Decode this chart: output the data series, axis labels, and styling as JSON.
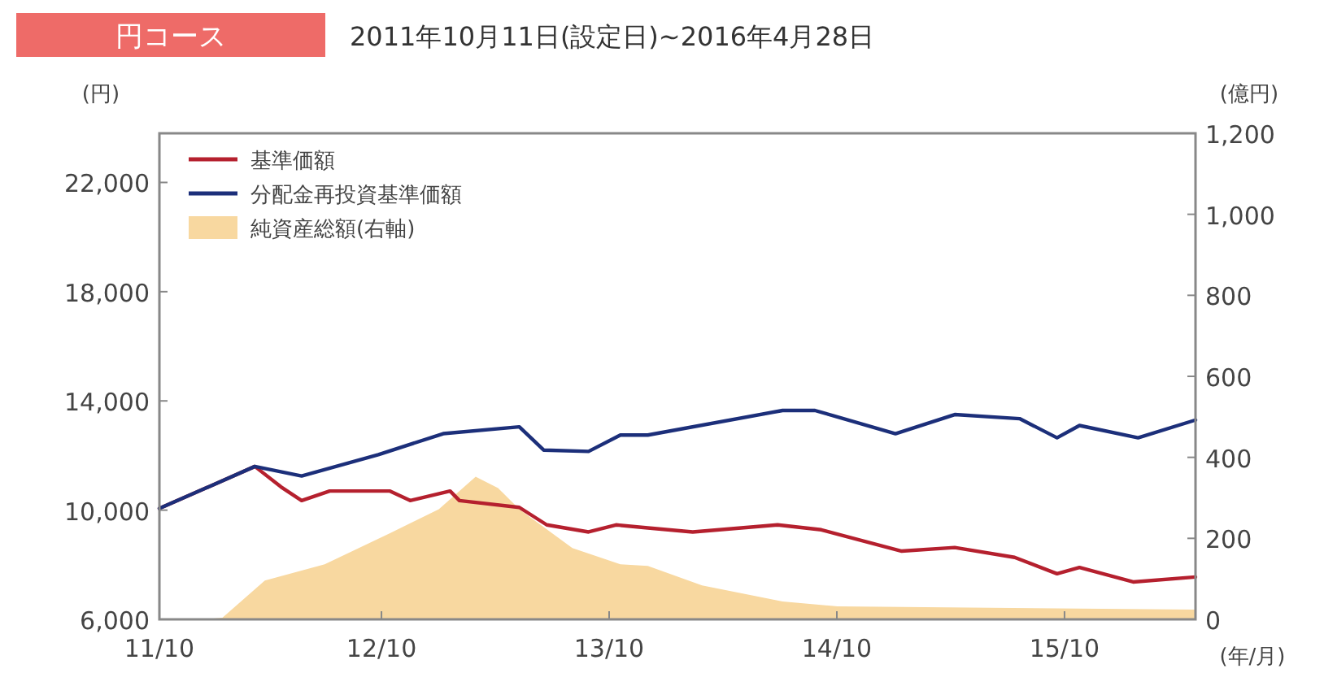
{
  "chart_data": {
    "type": "line",
    "title": "円コース",
    "subtitle": "2011年10月11日(設定日)~2016年4月28日",
    "xlabel": "(年/月)",
    "ylabel": "(円)",
    "y2label": "(億円)",
    "xlim": [
      "2011-10-11",
      "2016-04-28"
    ],
    "xticks": [
      {
        "value": "2011-10-11",
        "label": "11/10"
      },
      {
        "value": "2012-10-01",
        "label": "12/10"
      },
      {
        "value": "2013-10-01",
        "label": "13/10"
      },
      {
        "value": "2014-10-01",
        "label": "14/10"
      },
      {
        "value": "2015-10-01",
        "label": "15/10"
      }
    ],
    "ylim": [
      6000,
      23800
    ],
    "yticks": [
      {
        "value": 6000,
        "label": "6,000"
      },
      {
        "value": 10000,
        "label": "10,000"
      },
      {
        "value": 14000,
        "label": "14,000"
      },
      {
        "value": 18000,
        "label": "18,000"
      },
      {
        "value": 22000,
        "label": "22,000"
      }
    ],
    "y2lim": [
      0,
      1200
    ],
    "y2ticks": [
      0,
      200,
      400,
      600,
      800,
      {
        "value": 1000,
        "label": "1,000"
      },
      {
        "value": 1200,
        "label": "1,200"
      }
    ],
    "grid": false,
    "legend": "top left",
    "series": [
      {
        "name": "純資産総額(右軸)",
        "type": "area",
        "axis": "y2",
        "color": "#f8d8a0",
        "x": [
          "2011-10-11",
          "2011-12-23",
          "2012-01-20",
          "2012-03-28",
          "2012-07-02",
          "2012-10-14",
          "2013-01-01",
          "2013-03-01",
          "2013-04-06",
          "2013-05-10",
          "2013-08-03",
          "2013-10-19",
          "2013-12-02",
          "2014-02-27",
          "2014-07-06",
          "2014-10-02",
          "2016-04-28"
        ],
        "values": [
          0,
          0,
          4,
          96,
          136,
          212,
          272,
          352,
          324,
          272,
          176,
          136,
          132,
          84,
          44,
          32,
          24
        ]
      },
      {
        "name": "基準価額",
        "color": "#b5202e",
        "x": [
          "2011-10-11",
          "2012-03-12",
          "2012-04-23",
          "2012-05-26",
          "2012-07-10",
          "2012-10-14",
          "2012-11-16",
          "2013-01-19",
          "2013-02-03",
          "2013-05-10",
          "2013-06-23",
          "2013-08-29",
          "2013-10-12",
          "2013-12-02",
          "2014-02-12",
          "2014-06-28",
          "2014-09-06",
          "2015-01-13",
          "2015-04-08",
          "2015-07-13",
          "2015-09-19",
          "2015-10-25",
          "2016-01-19",
          "2016-04-28"
        ],
        "values": [
          10060,
          11600,
          10850,
          10350,
          10700,
          10700,
          10350,
          10700,
          10350,
          10100,
          9460,
          9200,
          9460,
          9350,
          9200,
          9460,
          9280,
          8500,
          8630,
          8270,
          7670,
          7900,
          7370,
          7550
        ]
      },
      {
        "name": "分配金再投資基準価額",
        "color": "#1c2f7a",
        "x": [
          "2011-10-11",
          "2012-03-12",
          "2012-05-26",
          "2012-09-26",
          "2013-01-08",
          "2013-05-10",
          "2013-06-18",
          "2013-08-29",
          "2013-10-19",
          "2013-12-02",
          "2014-07-06",
          "2014-08-27",
          "2015-01-03",
          "2015-04-08",
          "2015-07-21",
          "2015-09-19",
          "2015-10-25",
          "2016-01-27",
          "2016-04-28"
        ],
        "values": [
          10060,
          11600,
          11250,
          12030,
          12800,
          13050,
          12200,
          12150,
          12750,
          12750,
          13650,
          13650,
          12800,
          13500,
          13350,
          12650,
          13100,
          12650,
          13300
        ]
      }
    ]
  }
}
